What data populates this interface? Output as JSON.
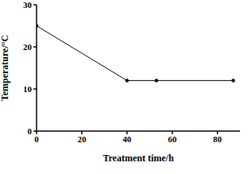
{
  "chart_data": {
    "type": "line",
    "x_label": "Treatment time/h",
    "y_label": "Temperature/°C",
    "x": [
      0,
      40,
      53,
      87
    ],
    "values": [
      25,
      12,
      12,
      12
    ],
    "color": "#000000",
    "marker": "circle",
    "xlim": [
      0,
      90
    ],
    "xticks": [
      0,
      20,
      40,
      60,
      80
    ],
    "ylim": [
      0,
      30
    ],
    "yticks": [
      0,
      10,
      20,
      30
    ],
    "grid": false
  }
}
